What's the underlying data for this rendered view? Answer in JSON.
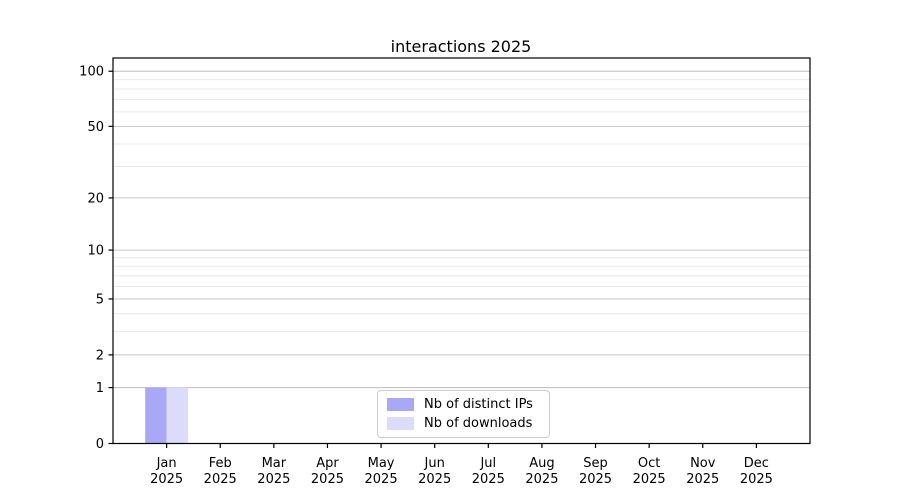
{
  "title": "interactions 2025",
  "chart_data": {
    "type": "bar",
    "title": "interactions 2025",
    "categories": [
      {
        "month": "Jan",
        "year": "2025"
      },
      {
        "month": "Feb",
        "year": "2025"
      },
      {
        "month": "Mar",
        "year": "2025"
      },
      {
        "month": "Apr",
        "year": "2025"
      },
      {
        "month": "May",
        "year": "2025"
      },
      {
        "month": "Jun",
        "year": "2025"
      },
      {
        "month": "Jul",
        "year": "2025"
      },
      {
        "month": "Aug",
        "year": "2025"
      },
      {
        "month": "Sep",
        "year": "2025"
      },
      {
        "month": "Oct",
        "year": "2025"
      },
      {
        "month": "Nov",
        "year": "2025"
      },
      {
        "month": "Dec",
        "year": "2025"
      }
    ],
    "series": [
      {
        "name": "Nb of distinct IPs",
        "color": "#a8a8f6",
        "values": [
          1,
          0,
          0,
          0,
          0,
          0,
          0,
          0,
          0,
          0,
          0,
          0
        ]
      },
      {
        "name": "Nb of downloads",
        "color": "#dcdcfa",
        "values": [
          1,
          0,
          0,
          0,
          0,
          0,
          0,
          0,
          0,
          0,
          0,
          0
        ]
      }
    ],
    "xlabel": "",
    "ylabel": "",
    "yscale": "log1p",
    "ylim": [
      0,
      118
    ],
    "y_major_ticks": [
      0,
      1,
      2,
      5,
      10,
      20,
      50,
      100
    ],
    "y_minor_ticks": [
      3,
      4,
      6,
      7,
      8,
      9,
      30,
      40,
      60,
      70,
      80,
      90
    ],
    "grid": "horizontal",
    "legend_position": "lower center"
  },
  "colors": {
    "background": "#ffffff",
    "axis": "#000000",
    "grid_major": "#c6c6c6",
    "grid_major_edge": "#bdbdbd",
    "grid_minor": "#eaeaea",
    "bar_distinct_ips": "#a8a8f6",
    "bar_downloads": "#dcdcfa",
    "legend_border": "#cccccc"
  }
}
